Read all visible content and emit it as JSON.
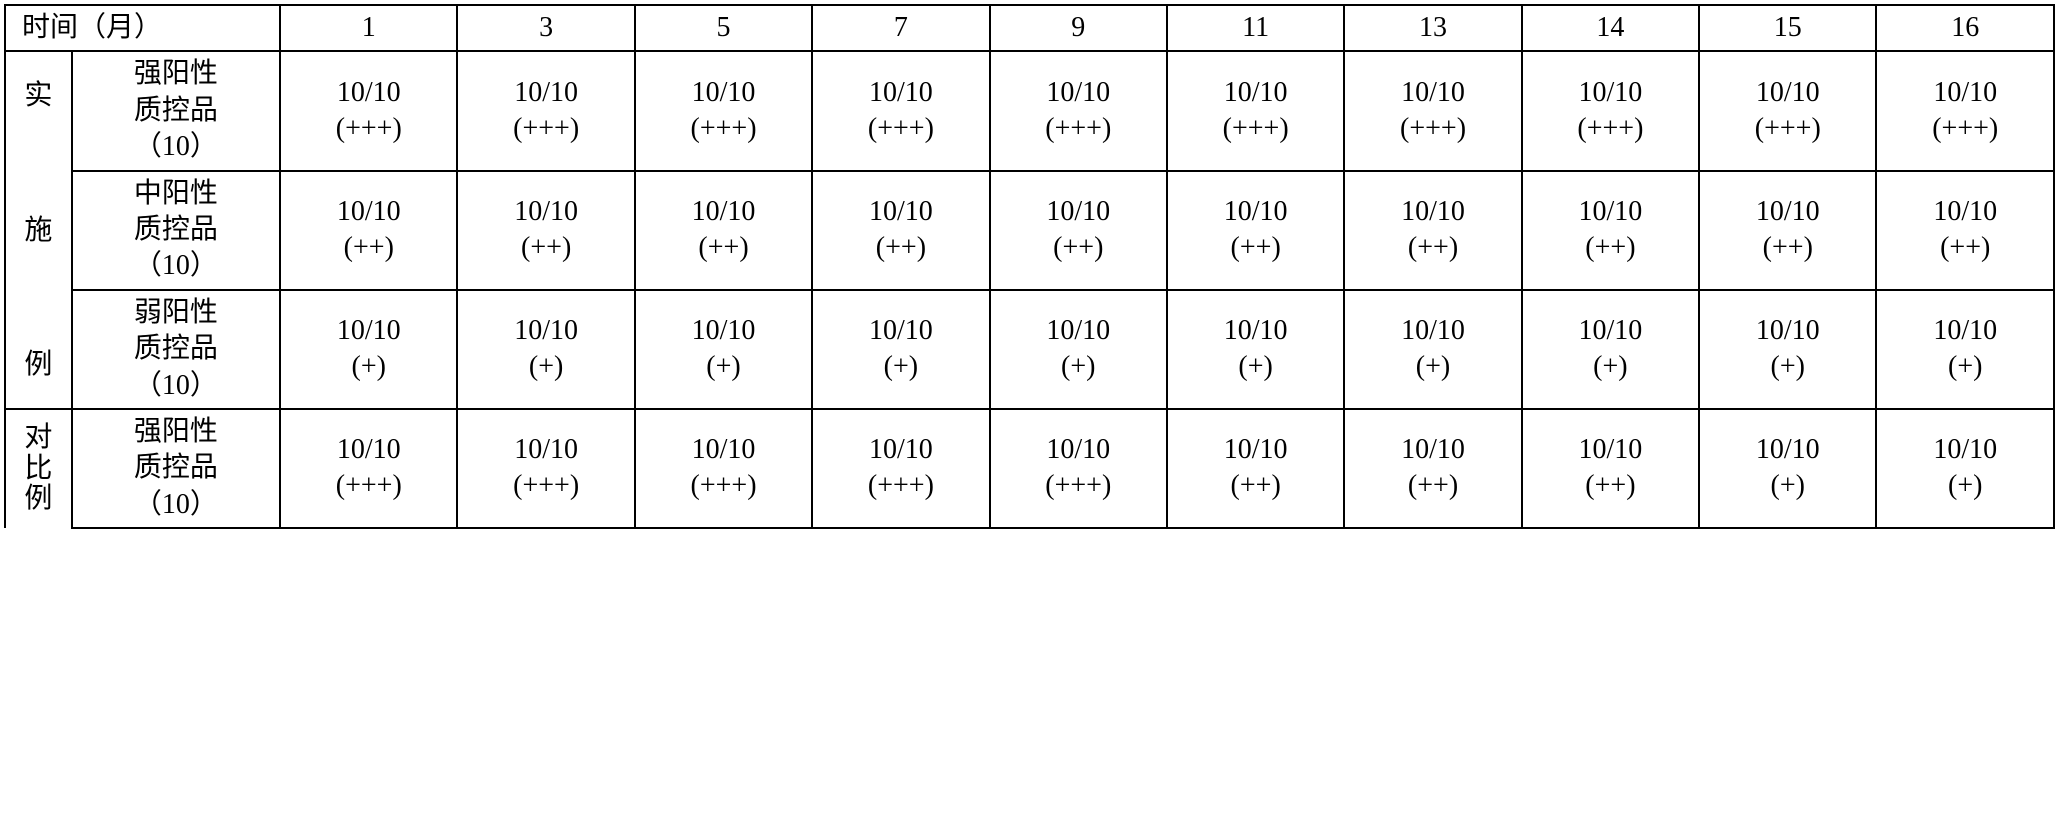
{
  "table": {
    "header": {
      "time_label": "时间（月）",
      "months": [
        "1",
        "3",
        "5",
        "7",
        "9",
        "11",
        "13",
        "14",
        "15",
        "16"
      ]
    },
    "groups": [
      {
        "label": "实\n\n施\n\n例",
        "label_style": "spaced",
        "rows": [
          {
            "qc_label": "强阳性\n质控品\n（10）",
            "cells": [
              "10/10\n(+++)",
              "10/10\n(+++)",
              "10/10\n(+++)",
              "10/10\n(+++)",
              "10/10\n(+++)",
              "10/10\n(+++)",
              "10/10\n(+++)",
              "10/10\n(+++)",
              "10/10\n(+++)",
              "10/10\n(+++)"
            ]
          },
          {
            "qc_label": "中阳性\n质控品\n（10）",
            "cells": [
              "10/10\n(++)",
              "10/10\n(++)",
              "10/10\n(++)",
              "10/10\n(++)",
              "10/10\n(++)",
              "10/10\n(++)",
              "10/10\n(++)",
              "10/10\n(++)",
              "10/10\n(++)",
              "10/10\n(++)"
            ]
          },
          {
            "qc_label": "弱阳性\n质控品\n（10）",
            "cells": [
              "10/10\n(+)",
              "10/10\n(+)",
              "10/10\n(+)",
              "10/10\n(+)",
              "10/10\n(+)",
              "10/10\n(+)",
              "10/10\n(+)",
              "10/10\n(+)",
              "10/10\n(+)",
              "10/10\n(+)"
            ]
          }
        ]
      },
      {
        "label": "对\n比\n例\n",
        "label_style": "tight",
        "rows": [
          {
            "qc_label": "强阳性\n质控品\n（10）",
            "cells": [
              "10/10\n(+++)",
              "10/10\n(+++)",
              "10/10\n(+++)",
              "10/10\n(+++)",
              "10/10\n(+++)",
              "10/10\n(++)",
              "10/10\n(++)",
              "10/10\n(++)",
              "10/10\n(+)",
              "10/10\n(+)"
            ]
          }
        ]
      }
    ]
  }
}
